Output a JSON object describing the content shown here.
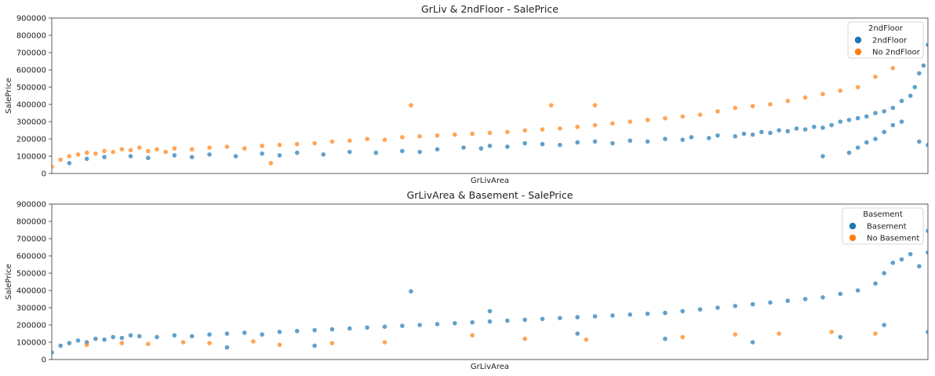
{
  "chart_data": [
    {
      "type": "scatter",
      "title": "GrLiv & 2ndFloor - SalePrice",
      "xlabel": "GrLivArea",
      "ylabel": "SalePrice",
      "ylim": [
        0,
        900000
      ],
      "yticks": [
        0,
        100000,
        200000,
        300000,
        400000,
        500000,
        600000,
        700000,
        800000,
        900000
      ],
      "ytick_labels": [
        "0",
        "100000",
        "200000",
        "300000",
        "400000",
        "500000",
        "600000",
        "700000",
        "800000",
        "900000"
      ],
      "x_ticks_shown": false,
      "legend_title": "2ndFloor",
      "legend_position": "top-right",
      "grid": false,
      "series": [
        {
          "name": "2ndFloor",
          "color": "#1f77b4",
          "points": [
            [
              0.02,
              60000
            ],
            [
              0.04,
              85000
            ],
            [
              0.06,
              95000
            ],
            [
              0.09,
              100000
            ],
            [
              0.11,
              90000
            ],
            [
              0.14,
              105000
            ],
            [
              0.16,
              95000
            ],
            [
              0.18,
              110000
            ],
            [
              0.21,
              100000
            ],
            [
              0.24,
              115000
            ],
            [
              0.26,
              105000
            ],
            [
              0.28,
              120000
            ],
            [
              0.31,
              110000
            ],
            [
              0.34,
              125000
            ],
            [
              0.37,
              120000
            ],
            [
              0.4,
              130000
            ],
            [
              0.42,
              125000
            ],
            [
              0.44,
              140000
            ],
            [
              0.47,
              150000
            ],
            [
              0.49,
              145000
            ],
            [
              0.5,
              160000
            ],
            [
              0.52,
              155000
            ],
            [
              0.54,
              175000
            ],
            [
              0.56,
              170000
            ],
            [
              0.58,
              165000
            ],
            [
              0.6,
              180000
            ],
            [
              0.62,
              185000
            ],
            [
              0.64,
              175000
            ],
            [
              0.66,
              190000
            ],
            [
              0.68,
              185000
            ],
            [
              0.7,
              200000
            ],
            [
              0.72,
              195000
            ],
            [
              0.73,
              210000
            ],
            [
              0.75,
              205000
            ],
            [
              0.76,
              220000
            ],
            [
              0.78,
              215000
            ],
            [
              0.79,
              230000
            ],
            [
              0.8,
              225000
            ],
            [
              0.81,
              240000
            ],
            [
              0.82,
              235000
            ],
            [
              0.83,
              250000
            ],
            [
              0.84,
              245000
            ],
            [
              0.85,
              260000
            ],
            [
              0.86,
              255000
            ],
            [
              0.87,
              270000
            ],
            [
              0.88,
              265000
            ],
            [
              0.89,
              280000
            ],
            [
              0.9,
              300000
            ],
            [
              0.91,
              310000
            ],
            [
              0.92,
              320000
            ],
            [
              0.93,
              330000
            ],
            [
              0.94,
              350000
            ],
            [
              0.95,
              360000
            ],
            [
              0.96,
              380000
            ],
            [
              0.97,
              420000
            ],
            [
              0.98,
              450000
            ],
            [
              0.985,
              500000
            ],
            [
              0.99,
              580000
            ],
            [
              0.995,
              625000
            ],
            [
              1.0,
              745000
            ],
            [
              0.97,
              300000
            ],
            [
              0.96,
              280000
            ],
            [
              0.95,
              240000
            ],
            [
              0.94,
              200000
            ],
            [
              0.93,
              180000
            ],
            [
              0.92,
              150000
            ],
            [
              0.91,
              120000
            ],
            [
              0.88,
              100000
            ],
            [
              0.99,
              185000
            ],
            [
              1.0,
              165000
            ]
          ]
        },
        {
          "name": "No 2ndFloor",
          "color": "#ff7f0e",
          "points": [
            [
              0.0,
              40000
            ],
            [
              0.01,
              80000
            ],
            [
              0.02,
              100000
            ],
            [
              0.03,
              110000
            ],
            [
              0.04,
              120000
            ],
            [
              0.05,
              115000
            ],
            [
              0.06,
              130000
            ],
            [
              0.07,
              125000
            ],
            [
              0.08,
              140000
            ],
            [
              0.09,
              135000
            ],
            [
              0.1,
              150000
            ],
            [
              0.11,
              130000
            ],
            [
              0.12,
              140000
            ],
            [
              0.13,
              125000
            ],
            [
              0.14,
              145000
            ],
            [
              0.16,
              140000
            ],
            [
              0.18,
              150000
            ],
            [
              0.2,
              155000
            ],
            [
              0.22,
              145000
            ],
            [
              0.24,
              160000
            ],
            [
              0.26,
              165000
            ],
            [
              0.28,
              170000
            ],
            [
              0.3,
              175000
            ],
            [
              0.32,
              185000
            ],
            [
              0.34,
              190000
            ],
            [
              0.36,
              200000
            ],
            [
              0.38,
              195000
            ],
            [
              0.4,
              210000
            ],
            [
              0.42,
              215000
            ],
            [
              0.44,
              220000
            ],
            [
              0.46,
              225000
            ],
            [
              0.48,
              230000
            ],
            [
              0.5,
              235000
            ],
            [
              0.52,
              240000
            ],
            [
              0.54,
              250000
            ],
            [
              0.56,
              255000
            ],
            [
              0.58,
              260000
            ],
            [
              0.6,
              270000
            ],
            [
              0.62,
              280000
            ],
            [
              0.64,
              290000
            ],
            [
              0.66,
              300000
            ],
            [
              0.68,
              310000
            ],
            [
              0.7,
              320000
            ],
            [
              0.72,
              330000
            ],
            [
              0.74,
              340000
            ],
            [
              0.76,
              360000
            ],
            [
              0.78,
              380000
            ],
            [
              0.8,
              390000
            ],
            [
              0.82,
              400000
            ],
            [
              0.84,
              420000
            ],
            [
              0.86,
              440000
            ],
            [
              0.88,
              460000
            ],
            [
              0.9,
              480000
            ],
            [
              0.92,
              500000
            ],
            [
              0.94,
              560000
            ],
            [
              0.96,
              610000
            ],
            [
              0.41,
              395000
            ],
            [
              0.57,
              395000
            ],
            [
              0.62,
              395000
            ],
            [
              0.25,
              60000
            ]
          ]
        }
      ]
    },
    {
      "type": "scatter",
      "title": "GrLivArea & Basement - SalePrice",
      "xlabel": "GrLivArea",
      "ylabel": "SalePrice",
      "ylim": [
        0,
        900000
      ],
      "yticks": [
        0,
        100000,
        200000,
        300000,
        400000,
        500000,
        600000,
        700000,
        800000,
        900000
      ],
      "ytick_labels": [
        "0",
        "100000",
        "200000",
        "300000",
        "400000",
        "500000",
        "600000",
        "700000",
        "800000",
        "900000"
      ],
      "x_ticks_shown": false,
      "legend_title": "Basement",
      "legend_position": "top-right",
      "grid": false,
      "series": [
        {
          "name": "Basement",
          "color": "#1f77b4",
          "points": [
            [
              0.0,
              40000
            ],
            [
              0.01,
              80000
            ],
            [
              0.02,
              95000
            ],
            [
              0.03,
              110000
            ],
            [
              0.04,
              100000
            ],
            [
              0.05,
              120000
            ],
            [
              0.06,
              115000
            ],
            [
              0.07,
              130000
            ],
            [
              0.08,
              125000
            ],
            [
              0.09,
              140000
            ],
            [
              0.1,
              135000
            ],
            [
              0.12,
              130000
            ],
            [
              0.14,
              140000
            ],
            [
              0.16,
              135000
            ],
            [
              0.18,
              145000
            ],
            [
              0.2,
              150000
            ],
            [
              0.22,
              155000
            ],
            [
              0.24,
              145000
            ],
            [
              0.26,
              160000
            ],
            [
              0.28,
              165000
            ],
            [
              0.3,
              170000
            ],
            [
              0.32,
              175000
            ],
            [
              0.34,
              180000
            ],
            [
              0.36,
              185000
            ],
            [
              0.38,
              190000
            ],
            [
              0.4,
              195000
            ],
            [
              0.42,
              200000
            ],
            [
              0.44,
              205000
            ],
            [
              0.46,
              210000
            ],
            [
              0.48,
              215000
            ],
            [
              0.5,
              220000
            ],
            [
              0.52,
              225000
            ],
            [
              0.54,
              230000
            ],
            [
              0.56,
              235000
            ],
            [
              0.58,
              240000
            ],
            [
              0.6,
              245000
            ],
            [
              0.62,
              250000
            ],
            [
              0.64,
              255000
            ],
            [
              0.66,
              260000
            ],
            [
              0.68,
              265000
            ],
            [
              0.7,
              270000
            ],
            [
              0.72,
              280000
            ],
            [
              0.74,
              290000
            ],
            [
              0.76,
              300000
            ],
            [
              0.78,
              310000
            ],
            [
              0.8,
              320000
            ],
            [
              0.82,
              330000
            ],
            [
              0.84,
              340000
            ],
            [
              0.86,
              350000
            ],
            [
              0.88,
              360000
            ],
            [
              0.9,
              380000
            ],
            [
              0.92,
              400000
            ],
            [
              0.94,
              440000
            ],
            [
              0.95,
              500000
            ],
            [
              0.96,
              560000
            ],
            [
              0.97,
              580000
            ],
            [
              0.98,
              610000
            ],
            [
              0.99,
              540000
            ],
            [
              1.0,
              745000
            ],
            [
              1.0,
              620000
            ],
            [
              0.41,
              395000
            ],
            [
              0.5,
              280000
            ],
            [
              0.6,
              150000
            ],
            [
              0.7,
              120000
            ],
            [
              0.8,
              100000
            ],
            [
              0.9,
              130000
            ],
            [
              0.95,
              200000
            ],
            [
              1.0,
              160000
            ],
            [
              0.3,
              80000
            ],
            [
              0.2,
              70000
            ]
          ]
        },
        {
          "name": "No Basement",
          "color": "#ff7f0e",
          "points": [
            [
              0.04,
              85000
            ],
            [
              0.08,
              95000
            ],
            [
              0.11,
              90000
            ],
            [
              0.15,
              100000
            ],
            [
              0.18,
              95000
            ],
            [
              0.23,
              105000
            ],
            [
              0.26,
              85000
            ],
            [
              0.32,
              95000
            ],
            [
              0.38,
              100000
            ],
            [
              0.48,
              140000
            ],
            [
              0.54,
              120000
            ],
            [
              0.61,
              115000
            ],
            [
              0.72,
              130000
            ],
            [
              0.78,
              145000
            ],
            [
              0.83,
              150000
            ],
            [
              0.89,
              160000
            ],
            [
              0.94,
              150000
            ]
          ]
        }
      ]
    }
  ]
}
